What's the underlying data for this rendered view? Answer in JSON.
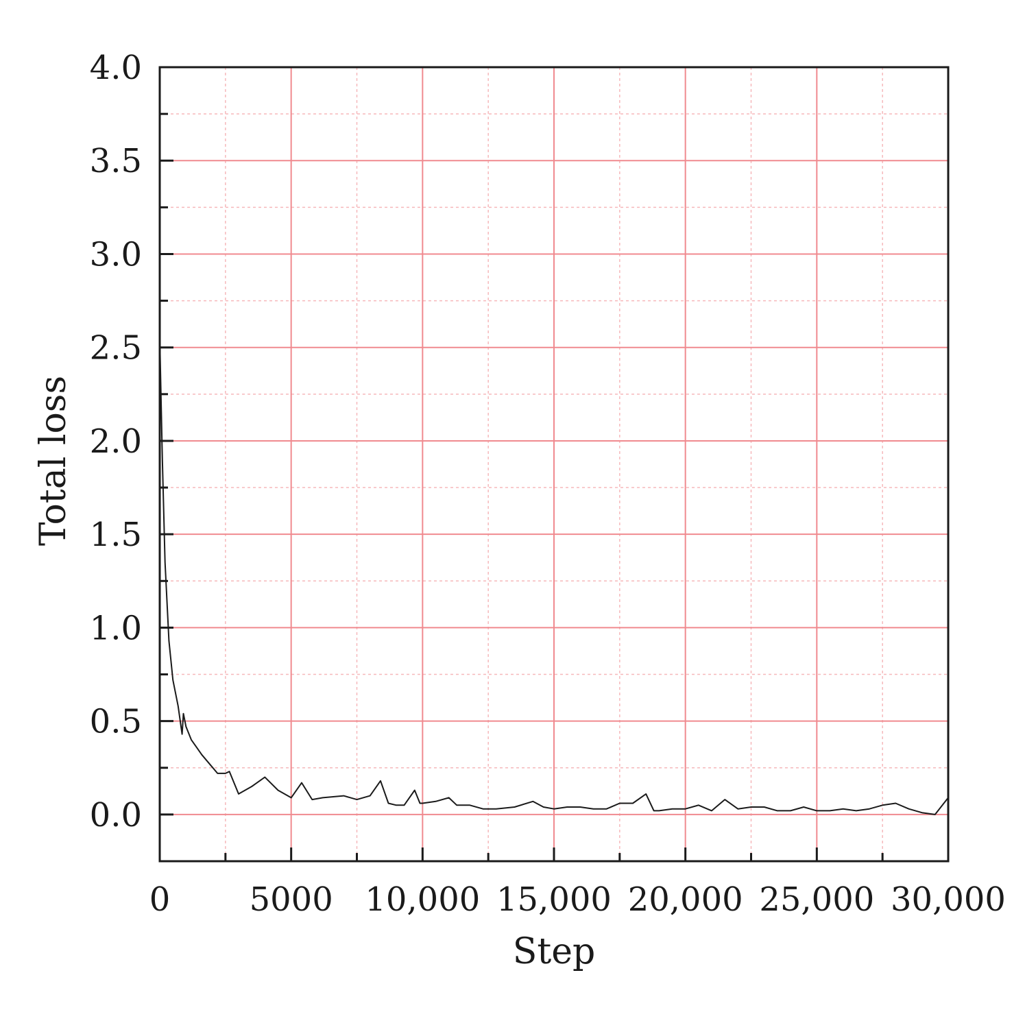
{
  "chart_data": {
    "type": "line",
    "title": "",
    "xlabel": "Step",
    "ylabel": "Total loss",
    "xlim": [
      0,
      30000
    ],
    "ylim": [
      -0.25,
      4.0
    ],
    "x_ticks": [
      0,
      5000,
      10000,
      15000,
      20000,
      25000,
      30000
    ],
    "x_tick_labels": [
      "0",
      "5000",
      "10,000",
      "15,000",
      "20,000",
      "25,000",
      "30,000"
    ],
    "y_ticks": [
      0.0,
      0.5,
      1.0,
      1.5,
      2.0,
      2.5,
      3.0,
      3.5,
      4.0
    ],
    "y_tick_labels": [
      "0.0",
      "0.5",
      "1.0",
      "1.5",
      "2.0",
      "2.5",
      "3.0",
      "3.5",
      "4.0"
    ],
    "grid": true,
    "legend": "none",
    "colors": {
      "major_grid": "#f08a8f",
      "minor_grid": "#f6b8bb",
      "line": "#1a1a1a",
      "axis": "#1a1a1a"
    },
    "series": [
      {
        "x": [
          0,
          100,
          200,
          350,
          500,
          700,
          850,
          900,
          1000,
          1200,
          1400,
          1600,
          1900,
          2200,
          2500,
          2650,
          3000,
          3500,
          4000,
          4500,
          5000,
          5400,
          5800,
          6200,
          7000,
          7500,
          8000,
          8400,
          8700,
          9000,
          9300,
          9700,
          9900,
          10000,
          10500,
          11000,
          11300,
          11800,
          12300,
          12800,
          13500,
          14200,
          14600,
          15000,
          15500,
          16000,
          16500,
          17000,
          17500,
          18000,
          18500,
          18800,
          19000,
          19500,
          20000,
          20500,
          21000,
          21500,
          22000,
          22500,
          23000,
          23500,
          24000,
          24500,
          25000,
          25500,
          26000,
          26500,
          27000,
          27500,
          28000,
          28500,
          29000,
          29500,
          30000
        ],
        "y": [
          2.55,
          1.9,
          1.35,
          0.93,
          0.72,
          0.58,
          0.43,
          0.54,
          0.47,
          0.4,
          0.36,
          0.32,
          0.27,
          0.22,
          0.22,
          0.23,
          0.11,
          0.15,
          0.2,
          0.13,
          0.09,
          0.17,
          0.08,
          0.09,
          0.1,
          0.08,
          0.1,
          0.18,
          0.06,
          0.05,
          0.05,
          0.13,
          0.06,
          0.06,
          0.07,
          0.09,
          0.05,
          0.05,
          0.03,
          0.03,
          0.04,
          0.07,
          0.04,
          0.03,
          0.04,
          0.04,
          0.03,
          0.03,
          0.06,
          0.06,
          0.11,
          0.02,
          0.02,
          0.03,
          0.03,
          0.05,
          0.02,
          0.08,
          0.03,
          0.04,
          0.04,
          0.02,
          0.02,
          0.04,
          0.02,
          0.02,
          0.03,
          0.02,
          0.03,
          0.05,
          0.06,
          0.03,
          0.01,
          0.0,
          0.09
        ]
      }
    ]
  }
}
